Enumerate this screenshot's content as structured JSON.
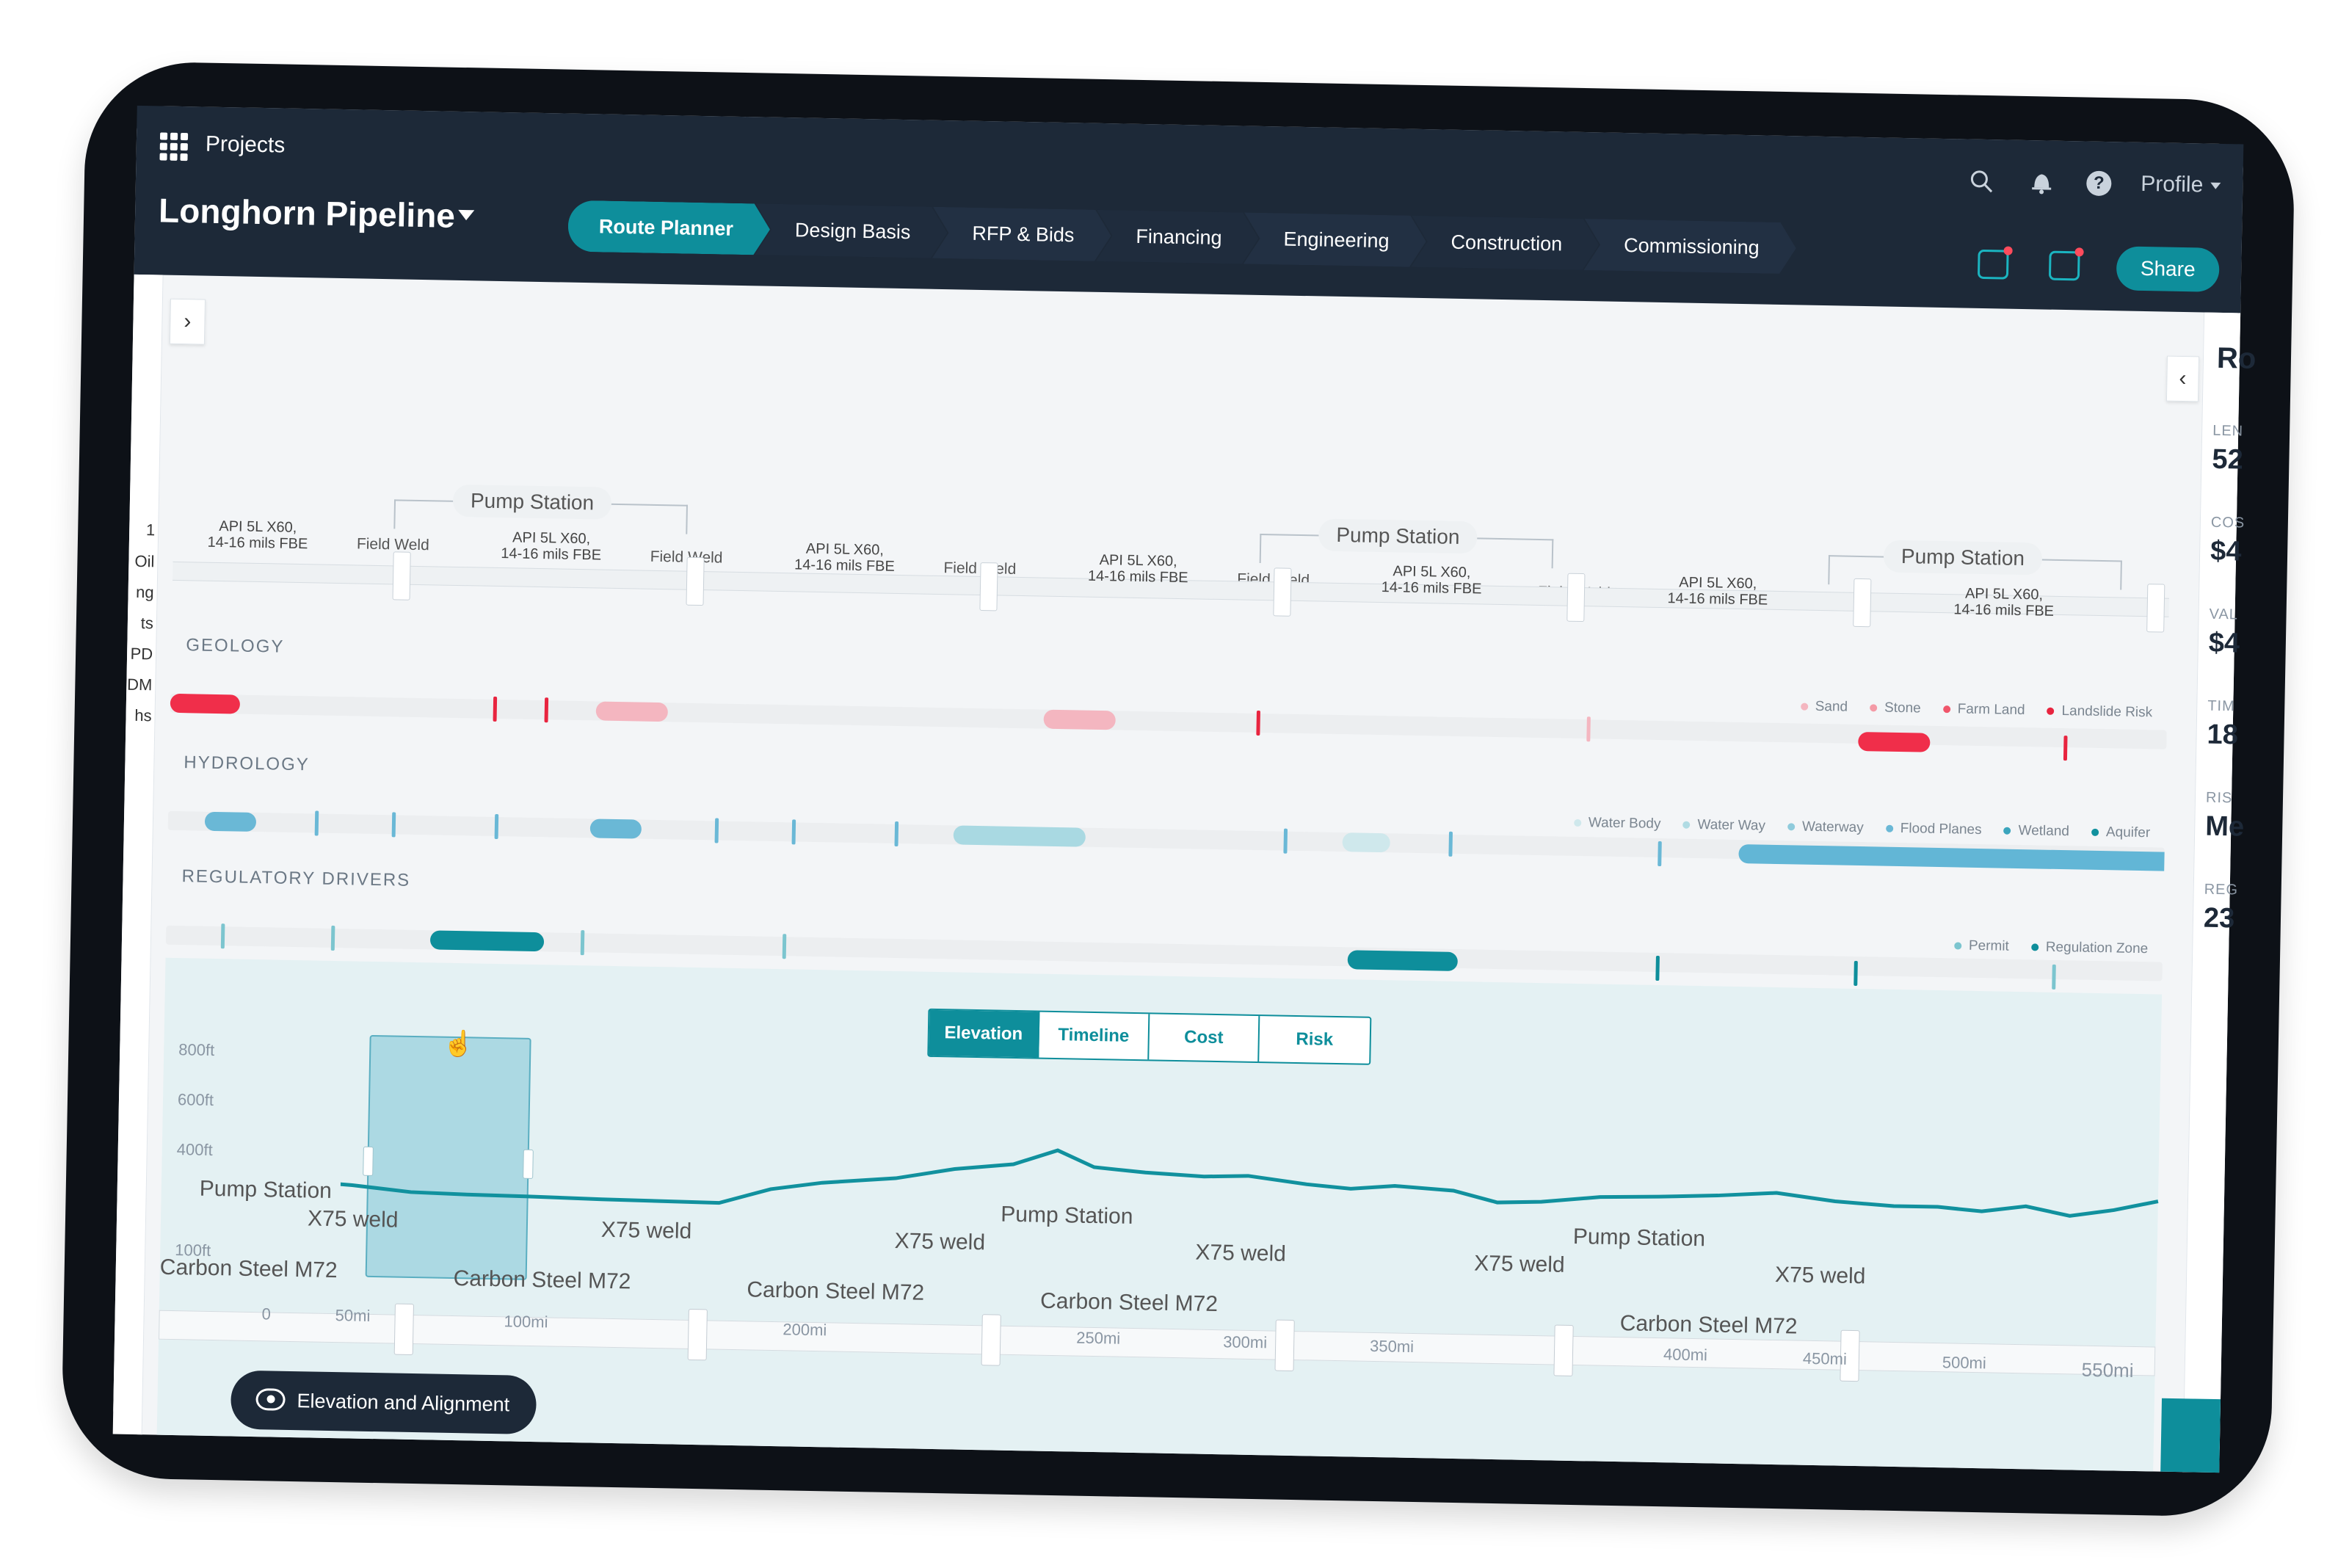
{
  "topbar": {
    "projects_label": "Projects",
    "project_name": "Longhorn Pipeline",
    "profile_label": "Profile",
    "share_label": "Share",
    "stages": [
      "Route Planner",
      "Design Basis",
      "RFP & Bids",
      "Financing",
      "Engineering",
      "Construction",
      "Commissioning"
    ],
    "active_stage": "Route Planner"
  },
  "left_rail_labels": [
    "1",
    "Oil",
    "ng",
    "ts",
    "PD",
    "DM",
    "hs"
  ],
  "right_panel": {
    "heading": "Ro",
    "rows": [
      {
        "k": "LEN",
        "v": "52"
      },
      {
        "k": "COS",
        "v": "$4"
      },
      {
        "k": "VAL",
        "v": "$4"
      },
      {
        "k": "TIM",
        "v": "18"
      },
      {
        "k": "RIS",
        "v": "Me"
      },
      {
        "k": "REG",
        "v": "23"
      }
    ]
  },
  "route": {
    "field_weld_label": "Field Weld",
    "pipe_spec_line1": "API 5L X60,",
    "pipe_spec_line2": "14-16 mils FBE",
    "pump_station_label": "Pump Station"
  },
  "sections": {
    "geology": "GEOLOGY",
    "hydrology": "HYDROLOGY",
    "regulatory": "REGULATORY DRIVERS"
  },
  "legends": {
    "geology": [
      {
        "label": "Sand",
        "color": "#f4b6c0"
      },
      {
        "label": "Stone",
        "color": "#f49aa6"
      },
      {
        "label": "Farm Land",
        "color": "#f0566b"
      },
      {
        "label": "Landslide Risk",
        "color": "#e8243f"
      }
    ],
    "hydrology": [
      {
        "label": "Water Body",
        "color": "#cfe8ec"
      },
      {
        "label": "Water Way",
        "color": "#b0dbe3"
      },
      {
        "label": "Waterway",
        "color": "#8fcbdc"
      },
      {
        "label": "Flood Planes",
        "color": "#6ab8d6"
      },
      {
        "label": "Wetland",
        "color": "#3ba5bd"
      },
      {
        "label": "Aquifer",
        "color": "#11919e"
      }
    ],
    "regulatory": [
      {
        "label": "Permit",
        "color": "#7cc5cf"
      },
      {
        "label": "Regulation Zone",
        "color": "#0e8e9b"
      }
    ]
  },
  "view_tabs": [
    "Elevation",
    "Timeline",
    "Cost",
    "Risk"
  ],
  "active_view": "Elevation",
  "elevation": {
    "y_labels": [
      "800ft",
      "600ft",
      "400ft",
      "100ft"
    ],
    "weld_label": "X75 weld",
    "pump_station_label": "Pump Station",
    "material_label": "Carbon Steel M72",
    "mile_labels": [
      "0",
      "50mi",
      "100mi",
      "200mi",
      "250mi",
      "300mi",
      "350mi",
      "400mi",
      "450mi",
      "500mi",
      "550mi"
    ]
  },
  "toggle_label": "Elevation and Alignment",
  "colors": {
    "accent": "#0e8e9b",
    "navy": "#1d2938"
  }
}
